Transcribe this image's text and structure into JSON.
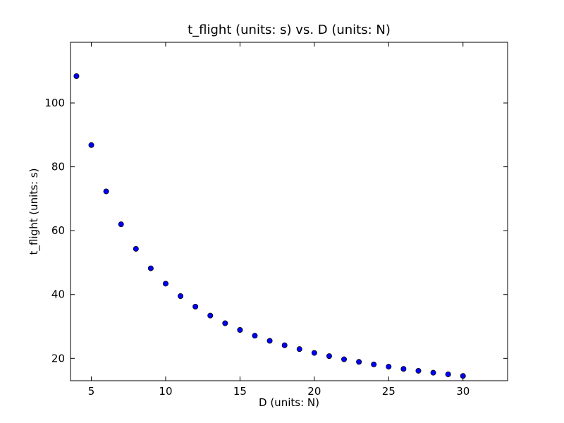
{
  "chart_data": {
    "type": "scatter",
    "title": "t_flight (units: s) vs. D (units: N)",
    "xlabel": "D (units: N)",
    "ylabel": "t_flight (units: s)",
    "xlim": [
      3.6,
      33
    ],
    "ylim": [
      13,
      119
    ],
    "xticks": [
      5,
      10,
      15,
      20,
      25,
      30
    ],
    "yticks": [
      20,
      40,
      60,
      80,
      100
    ],
    "grid": false,
    "marker_color": "#0000ff",
    "marker_edge_color": "#000000",
    "x": [
      4,
      5,
      6,
      7,
      8,
      9,
      10,
      11,
      12,
      13,
      14,
      15,
      16,
      17,
      18,
      19,
      20,
      21,
      22,
      23,
      24,
      25,
      26,
      27,
      28,
      29,
      30
    ],
    "y": [
      108.4,
      86.8,
      72.3,
      62.0,
      54.3,
      48.2,
      43.4,
      39.5,
      36.2,
      33.4,
      31.0,
      28.9,
      27.1,
      25.5,
      24.1,
      22.9,
      21.7,
      20.7,
      19.7,
      18.9,
      18.1,
      17.4,
      16.7,
      16.1,
      15.5,
      15.0,
      14.5
    ]
  }
}
